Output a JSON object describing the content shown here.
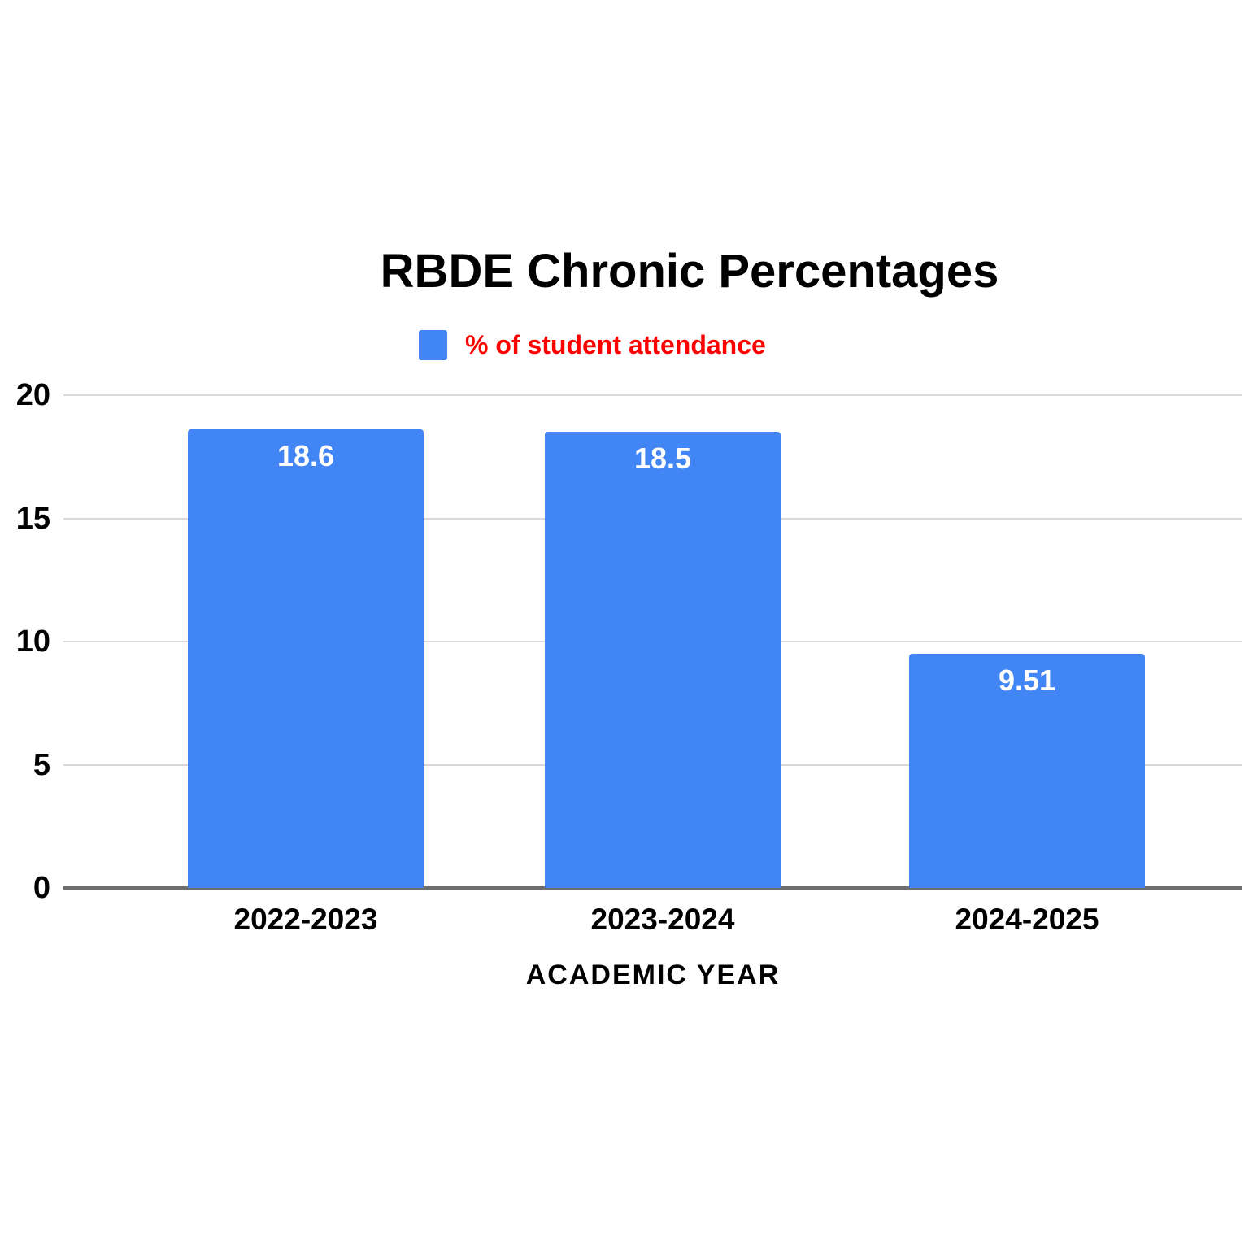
{
  "title": "RBDE Chronic Percentages",
  "legend": {
    "label": "% of student attendance",
    "swatch_color": "#4285F4",
    "text_color": "#FF0000"
  },
  "colors": {
    "bar": "#4285F4",
    "legend_text": "#FF0000",
    "gridline": "#D9D9D9",
    "axis_line": "#6E6E6E",
    "title_text": "#000000",
    "tick_label_text": "#000000",
    "bar_value_label_text": "#FFFFFF"
  },
  "chart_data": {
    "type": "bar",
    "title": "RBDE Chronic Percentages",
    "categories": [
      "2022-2023",
      "2023-2024",
      "2024-2025"
    ],
    "series": [
      {
        "name": "% of student attendance",
        "values": [
          18.6,
          18.5,
          9.51
        ]
      }
    ],
    "value_labels": [
      "18.6",
      "18.5",
      "9.51"
    ],
    "xlabel": "ACADEMIC YEAR",
    "ylabel": "",
    "ylim": [
      0,
      20
    ],
    "yticks": [
      0,
      5,
      10,
      15,
      20
    ],
    "grid": true,
    "legend_position": "top",
    "bar_color": "#4285F4"
  }
}
